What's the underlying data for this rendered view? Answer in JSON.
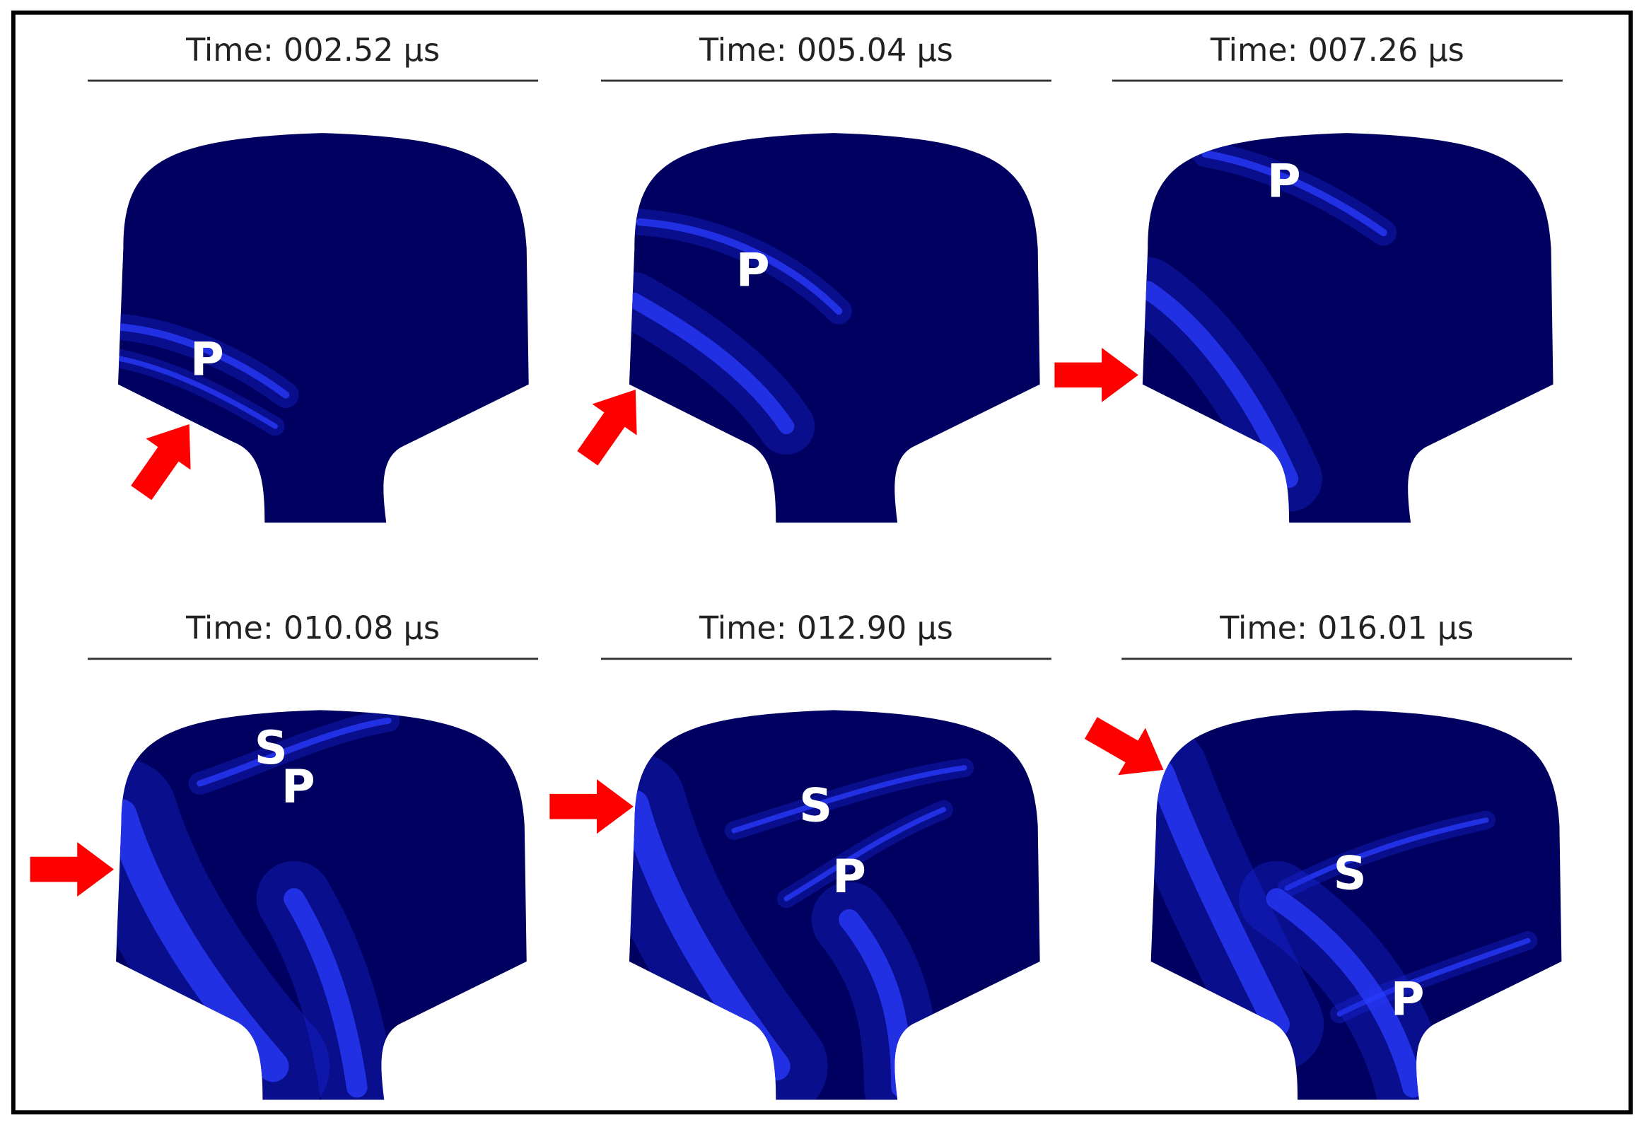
{
  "panels": [
    {
      "title": "Time: 002.52 µs",
      "labels": [
        "P"
      ]
    },
    {
      "title": "Time: 005.04 µs",
      "labels": [
        "P"
      ]
    },
    {
      "title": "Time: 007.26 µs",
      "labels": [
        "P"
      ]
    },
    {
      "title": "Time: 010.08 µs",
      "labels": [
        "S",
        "P"
      ]
    },
    {
      "title": "Time: 012.90 µs",
      "labels": [
        "S",
        "P"
      ]
    },
    {
      "title": "Time: 016.01 µs",
      "labels": [
        "S",
        "P"
      ]
    }
  ]
}
